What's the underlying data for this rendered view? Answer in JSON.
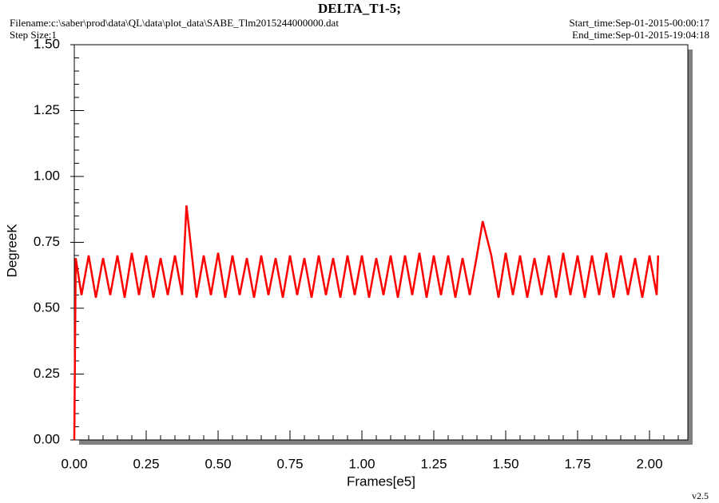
{
  "chart_data": {
    "type": "line",
    "title": "DELTA_T1-5;",
    "filename": "Filename:c:\\saber\\prod\\data\\QL\\data\\plot_data\\SABE_Tlm2015244000000.dat",
    "step_size": "Step Size:1",
    "start_time": "Start_time:Sep-01-2015-00:00:17",
    "end_time": "End_time:Sep-01-2015-19:04:18",
    "version": "v2.5",
    "x_label": "Frames[e5]",
    "y_label": "DegreeK",
    "xlim": [
      0,
      2.1333
    ],
    "ylim": [
      0,
      1.5
    ],
    "xticks": [
      {
        "value": 0,
        "label": "0.00"
      },
      {
        "value": 0.25,
        "label": "0.25"
      },
      {
        "value": 0.5,
        "label": "0.50"
      },
      {
        "value": 0.75,
        "label": "0.75"
      },
      {
        "value": 1,
        "label": "1.00"
      },
      {
        "value": 1.25,
        "label": "1.25"
      },
      {
        "value": 1.5,
        "label": "1.50"
      },
      {
        "value": 1.75,
        "label": "1.75"
      },
      {
        "value": 2,
        "label": "2.00"
      }
    ],
    "yticks": [
      {
        "value": 0,
        "label": "0.00"
      },
      {
        "value": 0.25,
        "label": "0.25"
      },
      {
        "value": 0.5,
        "label": "0.50"
      },
      {
        "value": 0.75,
        "label": "0.75"
      },
      {
        "value": 1,
        "label": "1.00"
      },
      {
        "value": 1.25,
        "label": "1.25"
      },
      {
        "value": 1.5,
        "label": "1.50"
      }
    ],
    "minor_step": 0.05,
    "series": [
      {
        "color": "#ff0000",
        "x": [
          0,
          0.005,
          0.025,
          0.05,
          0.075,
          0.1,
          0.125,
          0.15,
          0.175,
          0.2,
          0.225,
          0.25,
          0.275,
          0.3,
          0.325,
          0.35,
          0.375,
          0.39,
          0.425,
          0.45,
          0.475,
          0.5,
          0.525,
          0.55,
          0.575,
          0.6,
          0.625,
          0.65,
          0.675,
          0.7,
          0.725,
          0.75,
          0.775,
          0.8,
          0.825,
          0.85,
          0.875,
          0.9,
          0.925,
          0.95,
          0.975,
          1,
          1.025,
          1.05,
          1.075,
          1.1,
          1.125,
          1.15,
          1.175,
          1.2,
          1.225,
          1.25,
          1.275,
          1.3,
          1.325,
          1.35,
          1.375,
          1.4,
          1.42,
          1.45,
          1.475,
          1.5,
          1.525,
          1.55,
          1.575,
          1.6,
          1.625,
          1.65,
          1.675,
          1.7,
          1.725,
          1.75,
          1.775,
          1.8,
          1.825,
          1.85,
          1.875,
          1.9,
          1.925,
          1.95,
          1.975,
          2,
          2.025,
          2.03
        ],
        "values": [
          0,
          0.69,
          0.55,
          0.7,
          0.54,
          0.69,
          0.55,
          0.7,
          0.54,
          0.71,
          0.55,
          0.7,
          0.54,
          0.69,
          0.55,
          0.7,
          0.55,
          0.89,
          0.54,
          0.7,
          0.55,
          0.71,
          0.54,
          0.7,
          0.55,
          0.69,
          0.54,
          0.7,
          0.55,
          0.69,
          0.54,
          0.7,
          0.55,
          0.69,
          0.54,
          0.7,
          0.55,
          0.69,
          0.54,
          0.7,
          0.55,
          0.7,
          0.54,
          0.69,
          0.55,
          0.7,
          0.54,
          0.7,
          0.55,
          0.71,
          0.54,
          0.7,
          0.55,
          0.7,
          0.54,
          0.69,
          0.55,
          0.7,
          0.83,
          0.7,
          0.54,
          0.71,
          0.55,
          0.7,
          0.54,
          0.69,
          0.55,
          0.7,
          0.54,
          0.71,
          0.55,
          0.7,
          0.54,
          0.7,
          0.55,
          0.71,
          0.54,
          0.7,
          0.55,
          0.69,
          0.54,
          0.7,
          0.55,
          0.7
        ]
      }
    ]
  }
}
